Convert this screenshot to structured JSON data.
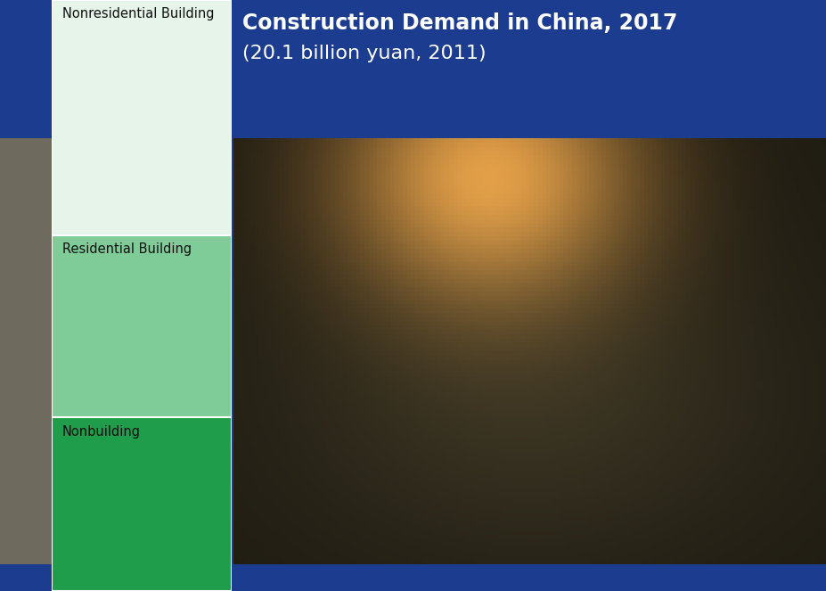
{
  "chart_data": {
    "type": "bar",
    "title": "Construction Demand in China, 2017",
    "subtitle": "(20.1 billion yuan, 2011)",
    "stacked": true,
    "tick_labels": false,
    "ylim": [
      0,
      20.1
    ],
    "yticks": [],
    "series": [
      {
        "name": "Nonbuilding",
        "color": "#1f9d4a",
        "values": [
          5.9
        ]
      },
      {
        "name": "Residential Building",
        "color": "#80cc98",
        "values": [
          6.2
        ]
      },
      {
        "name": "Nonresidential Building",
        "color": "#e6f4ea",
        "values": [
          8.0
        ]
      }
    ]
  }
}
